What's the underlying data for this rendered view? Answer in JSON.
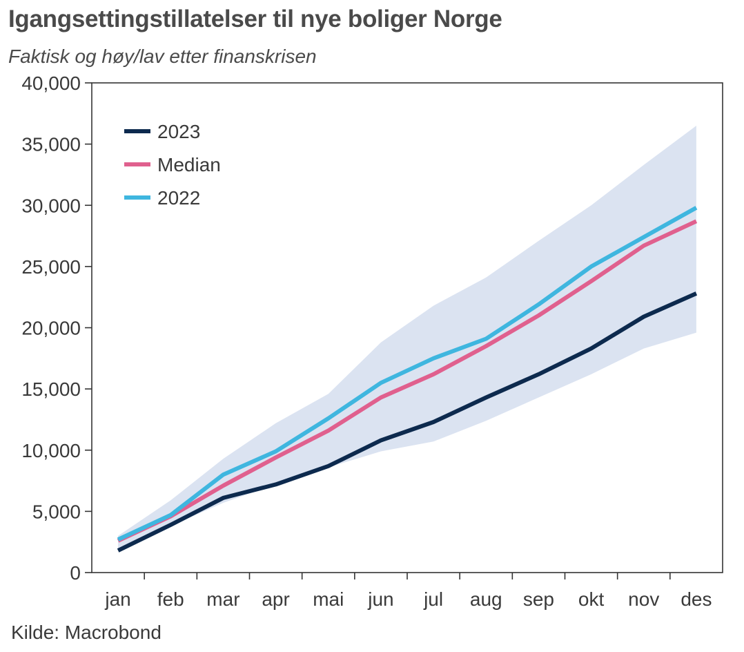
{
  "chart_data": {
    "type": "line",
    "title": "Igangsettingstillatelser til nye boliger Norge",
    "subtitle": "Faktisk og høy/lav etter finanskrisen",
    "source": "Kilde: Macrobond",
    "categories": [
      "jan",
      "feb",
      "mar",
      "apr",
      "mai",
      "jun",
      "jul",
      "aug",
      "sep",
      "okt",
      "nov",
      "des"
    ],
    "ylim": [
      0,
      40000
    ],
    "yticks": [
      0,
      5000,
      10000,
      15000,
      20000,
      25000,
      30000,
      35000,
      40000
    ],
    "ytick_labels": [
      "0",
      "5,000",
      "10,000",
      "15,000",
      "20,000",
      "25,000",
      "30,000",
      "35,000",
      "40,000"
    ],
    "band": {
      "name": "Høy/lav",
      "color": "#dbe3f1",
      "high": [
        3000,
        5900,
        9300,
        12200,
        14600,
        18800,
        21800,
        24100,
        27100,
        30000,
        33300,
        36500
      ],
      "low": [
        1900,
        3800,
        5700,
        7200,
        8600,
        9900,
        10700,
        12400,
        14300,
        16200,
        18300,
        19600
      ]
    },
    "series": [
      {
        "name": "2023",
        "color": "#0d2a4e",
        "values": [
          1800,
          3900,
          6100,
          7200,
          8700,
          10800,
          12300,
          14300,
          16200,
          18300,
          20900,
          22800
        ]
      },
      {
        "name": "Median",
        "color": "#e0608e",
        "values": [
          2600,
          4600,
          7100,
          9400,
          11600,
          14300,
          16200,
          18500,
          21000,
          23800,
          26700,
          28700
        ]
      },
      {
        "name": "2022",
        "color": "#3fb6df",
        "values": [
          2700,
          4700,
          8000,
          9900,
          12600,
          15500,
          17500,
          19100,
          21900,
          25000,
          27400,
          29800
        ]
      }
    ],
    "legend_position": "top-left",
    "grid": false
  }
}
